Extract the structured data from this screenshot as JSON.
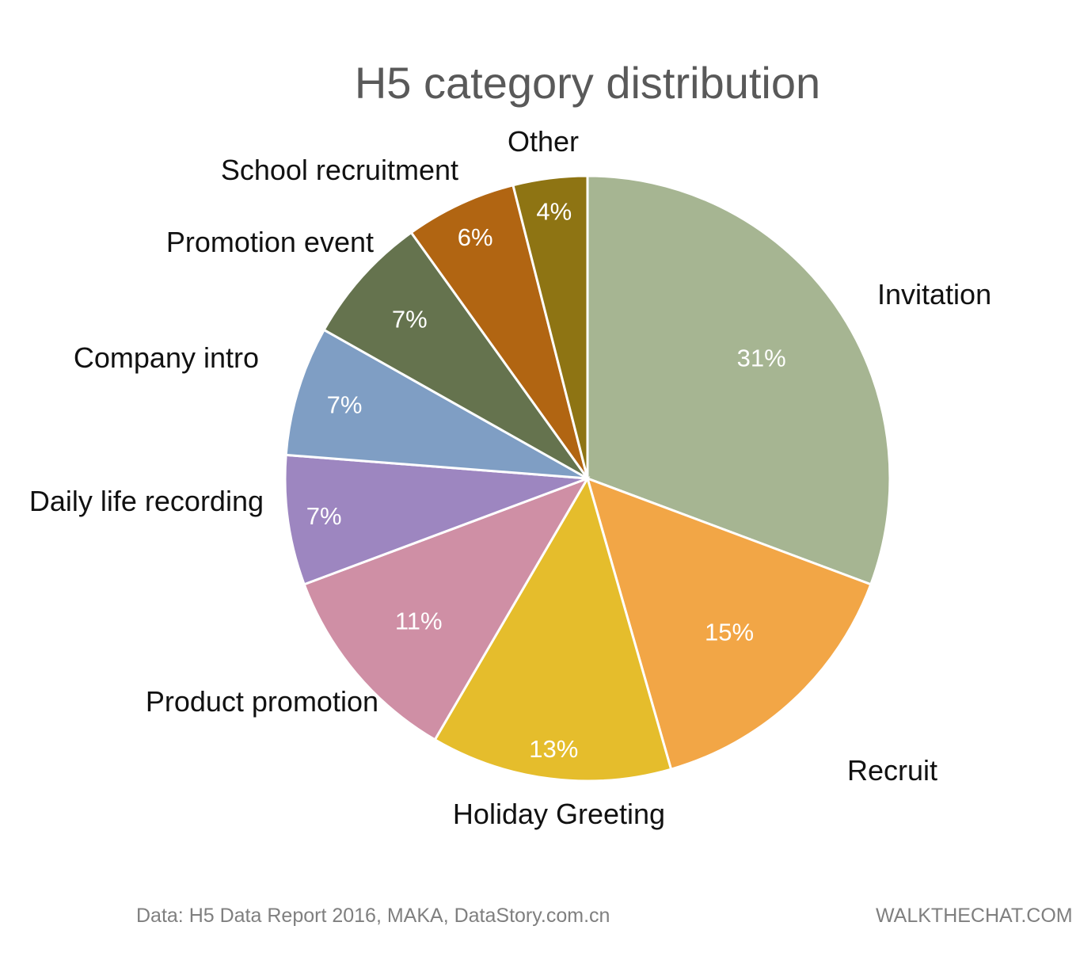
{
  "chart_data": {
    "type": "pie",
    "title": "H5 category distribution",
    "slices": [
      {
        "label": "Invitation",
        "value": 31,
        "display": "31%",
        "color": "#A6B592"
      },
      {
        "label": "Recruit",
        "value": 15,
        "display": "15%",
        "color": "#F2A646"
      },
      {
        "label": "Holiday Greeting",
        "value": 13,
        "display": "13%",
        "color": "#E5BD2C"
      },
      {
        "label": "Product promotion",
        "value": 11,
        "display": "11%",
        "color": "#CF8FA5"
      },
      {
        "label": "Daily life recording",
        "value": 7,
        "display": "7%",
        "color": "#9D86C0"
      },
      {
        "label": "Company intro",
        "value": 7,
        "display": "7%",
        "color": "#7F9EC4"
      },
      {
        "label": "Promotion event",
        "value": 7,
        "display": "7%",
        "color": "#65734E"
      },
      {
        "label": "School recruitment",
        "value": 6,
        "display": "6%",
        "color": "#B16512"
      },
      {
        "label": "Other",
        "value": 4,
        "display": "4%",
        "color": "#8E7413"
      }
    ],
    "start": "12 o'clock",
    "direction": "clockwise"
  },
  "footer": {
    "source": "Data: H5 Data Report 2016, MAKA, DataStory.com.cn",
    "brand": "WALKTHECHAT.COM"
  }
}
